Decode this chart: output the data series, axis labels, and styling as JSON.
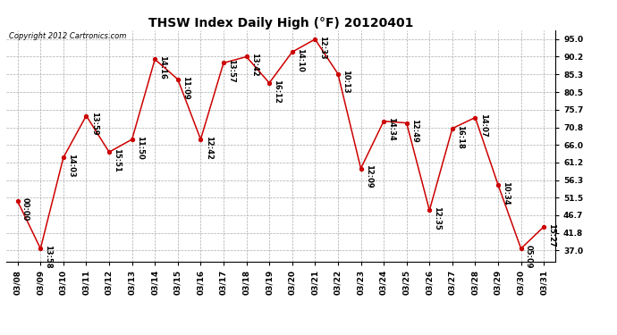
{
  "title": "THSW Index Daily High (°F) 20120401",
  "copyright": "Copyright 2012 Cartronics.com",
  "background_color": "#ffffff",
  "line_color": "#cc0000",
  "marker_color": "#cc0000",
  "grid_color": "#aaaaaa",
  "dates": [
    "03/08",
    "03/09",
    "03/10",
    "03/11",
    "03/12",
    "03/13",
    "03/14",
    "03/15",
    "03/16",
    "03/17",
    "03/18",
    "03/19",
    "03/20",
    "03/21",
    "03/22",
    "03/23",
    "03/24",
    "03/25",
    "03/26",
    "03/27",
    "03/28",
    "03/29",
    "03/30",
    "03/31"
  ],
  "values": [
    50.5,
    37.5,
    62.5,
    74.0,
    64.0,
    67.5,
    89.5,
    84.0,
    67.5,
    88.5,
    90.2,
    83.0,
    91.5,
    95.0,
    85.5,
    59.5,
    72.5,
    72.0,
    48.0,
    70.5,
    73.5,
    55.0,
    37.5,
    43.5
  ],
  "time_labels": [
    "00:00",
    "13:58",
    "14:03",
    "13:59",
    "15:51",
    "11:50",
    "14:16",
    "11:09",
    "12:42",
    "13:57",
    "13:42",
    "16:12",
    "14:10",
    "12:33",
    "10:13",
    "12:09",
    "14:34",
    "12:49",
    "12:35",
    "16:18",
    "14:07",
    "10:34",
    "05:09",
    "15:27"
  ],
  "yticks": [
    37.0,
    41.8,
    46.7,
    51.5,
    56.3,
    61.2,
    66.0,
    70.8,
    75.7,
    80.5,
    85.3,
    90.2,
    95.0
  ],
  "ylim": [
    34.0,
    97.5
  ],
  "title_fontsize": 10,
  "tick_fontsize": 6.5,
  "annot_fontsize": 6.0,
  "copyright_fontsize": 6.0
}
